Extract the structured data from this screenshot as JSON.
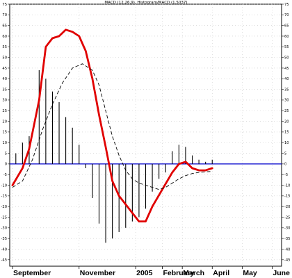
{
  "chart_data": {
    "type": "line",
    "title": "MACD (12,26,9), Histogram/MACD (1.5037)",
    "ylim": [
      -48,
      75
    ],
    "yticks": [
      75,
      70,
      65,
      60,
      55,
      50,
      45,
      40,
      35,
      30,
      25,
      20,
      15,
      10,
      5,
      0,
      -5,
      -10,
      -15,
      -20,
      -25,
      -30,
      -35,
      -40,
      -45
    ],
    "xlabels": [
      {
        "label": "September",
        "x": 0
      },
      {
        "label": "November",
        "x": 20
      },
      {
        "label": "2005",
        "x": 37
      },
      {
        "label": "February",
        "x": 45
      },
      {
        "label": "March",
        "x": 51
      },
      {
        "label": "April",
        "x": 60
      },
      {
        "label": "May",
        "x": 69
      },
      {
        "label": "June",
        "x": 78
      }
    ],
    "grid": true,
    "colors": {
      "macd": "#e00000",
      "signal": "#000000",
      "histogram": "#000000",
      "zero_line": "#0000cc"
    },
    "series": [
      {
        "name": "MACD",
        "style": "thick-line",
        "points": [
          [
            0,
            -10
          ],
          [
            3,
            -2
          ],
          [
            5,
            7
          ],
          [
            8,
            30
          ],
          [
            10,
            55
          ],
          [
            12,
            59
          ],
          [
            14,
            60
          ],
          [
            16,
            63
          ],
          [
            18,
            62
          ],
          [
            20,
            60
          ],
          [
            22,
            53
          ],
          [
            24,
            40
          ],
          [
            26,
            23
          ],
          [
            28,
            8
          ],
          [
            30,
            -8
          ],
          [
            32,
            -15
          ],
          [
            34,
            -19
          ],
          [
            36,
            -23
          ],
          [
            38,
            -27
          ],
          [
            40,
            -27
          ],
          [
            42,
            -20
          ],
          [
            45,
            -12
          ],
          [
            48,
            -4
          ],
          [
            50,
            0
          ],
          [
            52,
            1
          ],
          [
            54,
            -2
          ],
          [
            56,
            -3
          ],
          [
            58,
            -3
          ],
          [
            60,
            -2
          ]
        ]
      },
      {
        "name": "Signal",
        "style": "dashed-line",
        "points": [
          [
            0,
            -11
          ],
          [
            3,
            -8
          ],
          [
            6,
            2
          ],
          [
            9,
            16
          ],
          [
            12,
            28
          ],
          [
            15,
            38
          ],
          [
            18,
            45
          ],
          [
            21,
            47
          ],
          [
            24,
            44
          ],
          [
            26,
            37
          ],
          [
            28,
            25
          ],
          [
            30,
            13
          ],
          [
            32,
            4
          ],
          [
            34,
            -3
          ],
          [
            36,
            -7
          ],
          [
            38,
            -9
          ],
          [
            40,
            -10
          ],
          [
            42,
            -11
          ],
          [
            44,
            -12
          ],
          [
            46,
            -11
          ],
          [
            48,
            -9
          ],
          [
            50,
            -7
          ],
          [
            52,
            -5.5
          ],
          [
            54,
            -4.5
          ],
          [
            56,
            -4
          ],
          [
            58,
            -3.7
          ],
          [
            60,
            -3.5
          ]
        ]
      }
    ],
    "histogram": [
      {
        "x": 1,
        "value": 5
      },
      {
        "x": 3,
        "value": 10
      },
      {
        "x": 5,
        "value": 13
      },
      {
        "x": 8,
        "value": 44
      },
      {
        "x": 10,
        "value": 40
      },
      {
        "x": 12,
        "value": 34
      },
      {
        "x": 14,
        "value": 29
      },
      {
        "x": 16,
        "value": 22
      },
      {
        "x": 18,
        "value": 17
      },
      {
        "x": 20,
        "value": 9
      },
      {
        "x": 22,
        "value": -2
      },
      {
        "x": 24,
        "value": -16
      },
      {
        "x": 26,
        "value": -28
      },
      {
        "x": 28,
        "value": -37
      },
      {
        "x": 30,
        "value": -35
      },
      {
        "x": 32,
        "value": -32
      },
      {
        "x": 34,
        "value": -30
      },
      {
        "x": 36,
        "value": -27
      },
      {
        "x": 38,
        "value": -25
      },
      {
        "x": 40,
        "value": -21
      },
      {
        "x": 42,
        "value": -13
      },
      {
        "x": 44,
        "value": -7
      },
      {
        "x": 46,
        "value": -4
      },
      {
        "x": 48,
        "value": 6
      },
      {
        "x": 50,
        "value": 9
      },
      {
        "x": 52,
        "value": 8
      },
      {
        "x": 54,
        "value": 4
      },
      {
        "x": 56,
        "value": 2
      },
      {
        "x": 58,
        "value": 1
      },
      {
        "x": 60,
        "value": 2
      }
    ]
  }
}
